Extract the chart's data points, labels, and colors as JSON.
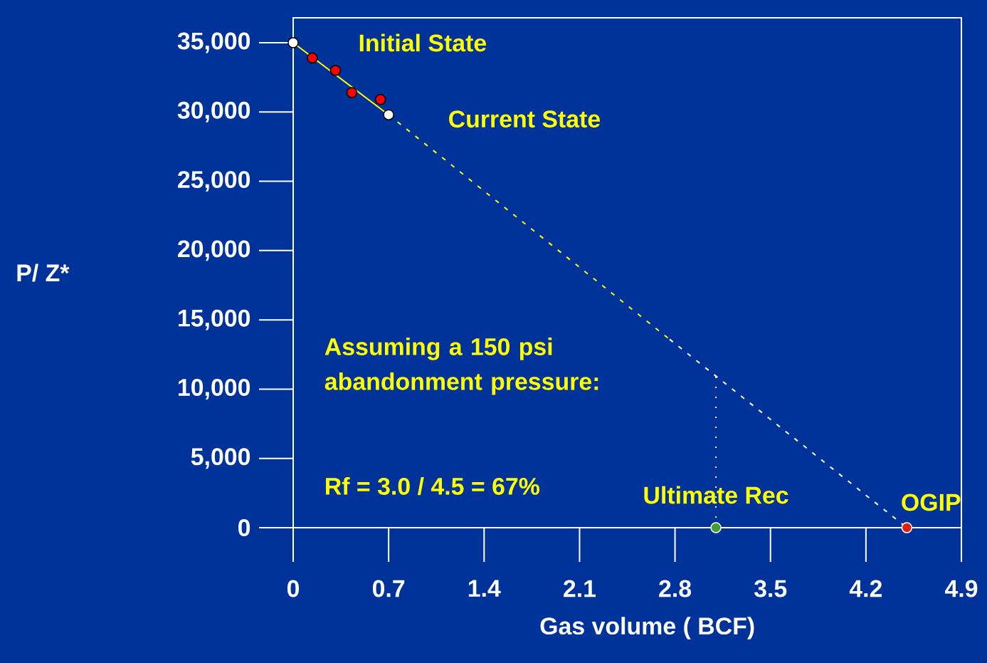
{
  "chart_data": {
    "type": "scatter",
    "xlabel": "Gas volume ( BCF)",
    "ylabel": "P/ Z*",
    "xlim": [
      0,
      4.9
    ],
    "ylim": [
      0,
      36800
    ],
    "xticks": [
      0,
      0.7,
      1.4,
      2.1,
      2.8,
      3.5,
      4.2,
      4.9
    ],
    "yticks": [
      {
        "value": 0,
        "label": "0"
      },
      {
        "value": 5000,
        "label": "5,000"
      },
      {
        "value": 10000,
        "label": "10,000"
      },
      {
        "value": 15000,
        "label": "15,000"
      },
      {
        "value": 20000,
        "label": "20,000"
      },
      {
        "value": 25000,
        "label": "25,000"
      },
      {
        "value": 30000,
        "label": "30,000"
      },
      {
        "value": 35000,
        "label": "35,000"
      }
    ],
    "grid": false,
    "series": [
      {
        "type": "line",
        "color": "#ffff00",
        "line_style": "solid",
        "marker": "none",
        "x": [
          0,
          0.7
        ],
        "values": [
          35000,
          29800
        ]
      },
      {
        "type": "line",
        "color": "#ffff00",
        "line_style": "dashed",
        "marker": "none",
        "x": [
          0.7,
          2.76
        ],
        "values": [
          29800,
          13600
        ]
      },
      {
        "type": "line",
        "color": "#ffffff",
        "line_style": "dashed",
        "marker": "none",
        "x": [
          2.76,
          4.5
        ],
        "values": [
          13600,
          0
        ]
      },
      {
        "type": "line",
        "color": "#ffffff",
        "line_style": "dotted",
        "marker": "none",
        "x": [
          3.1,
          3.1
        ],
        "values": [
          10900,
          0
        ]
      },
      {
        "color": "#ff0000",
        "marker": "circle",
        "x": [
          0.14,
          0.31,
          0.43,
          0.64
        ],
        "values": [
          33900,
          33000,
          31400,
          30900
        ]
      },
      {
        "colors": [
          "#ffffff",
          "#ffffff",
          "#40a030",
          "#dd2211"
        ],
        "marker": "circle",
        "x": [
          0,
          0.7,
          3.1,
          4.5
        ],
        "values": [
          35000,
          29800,
          0,
          0
        ]
      }
    ],
    "annotations": [
      {
        "text": "Initial State",
        "x": 0,
        "y": 35000
      },
      {
        "text": "Current State",
        "x": 0.7,
        "y": 29800
      },
      {
        "text": "Ultimate Rec",
        "x": 3.1,
        "y": 0
      },
      {
        "text": "OGIP",
        "x": 4.5,
        "y": 0
      },
      "Assuming a 150 psi abandonment pressure:",
      "Rf = 3.0 / 4.5 = 67%"
    ]
  }
}
